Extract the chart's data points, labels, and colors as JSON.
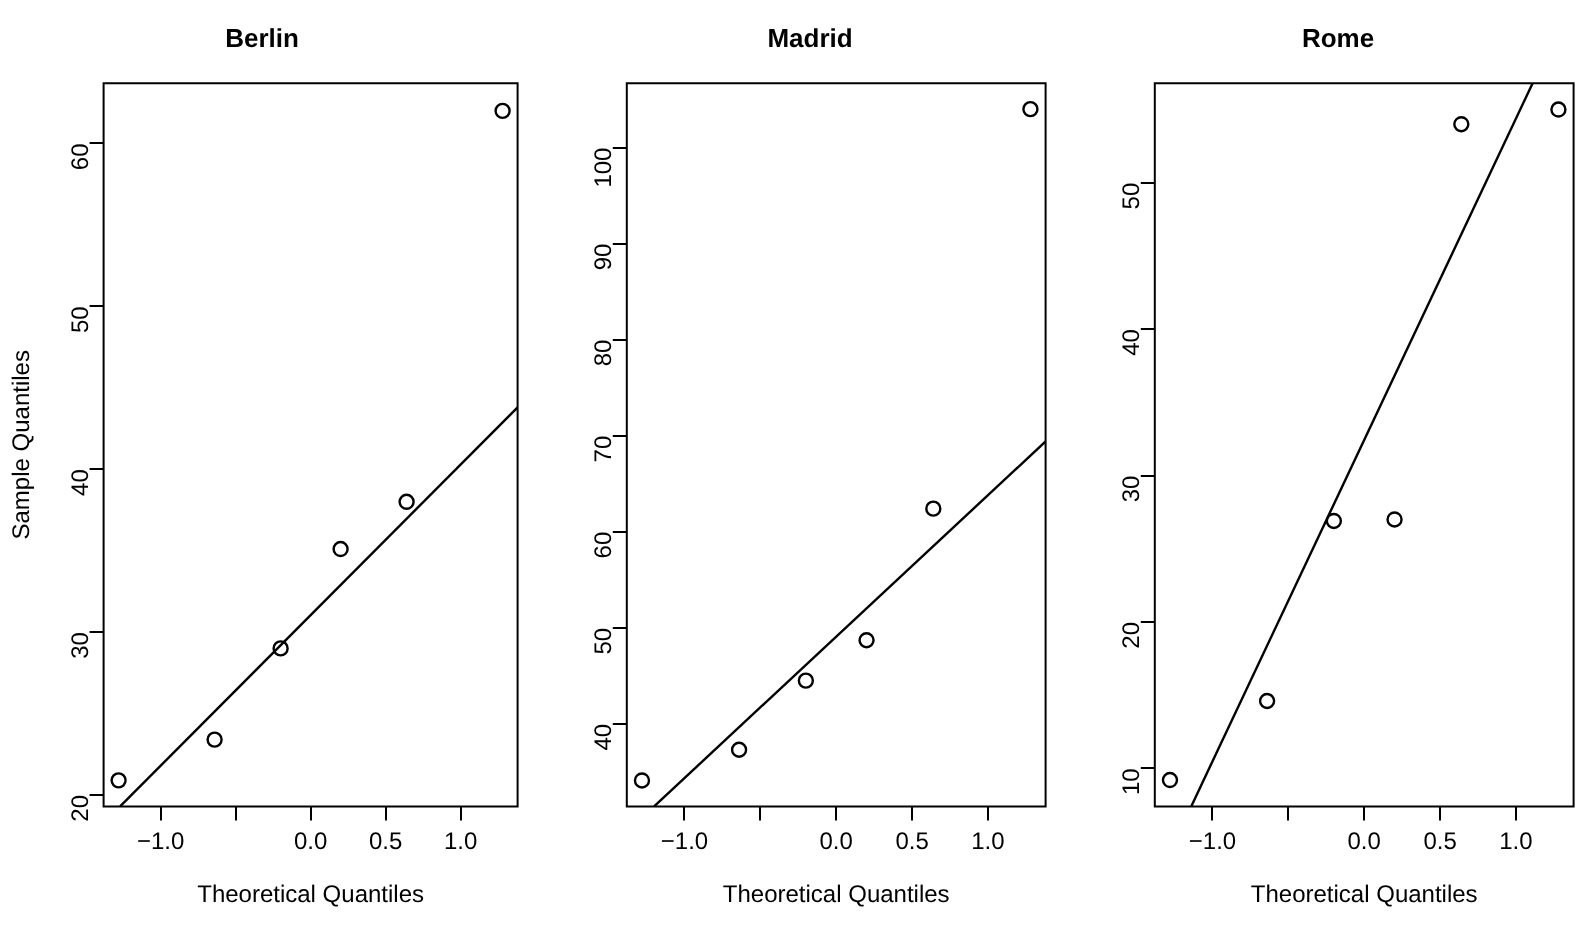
{
  "chart_data": [
    {
      "type": "scatter",
      "title": "Berlin",
      "xlabel": "Theoretical Quantiles",
      "ylabel": "Sample Quantiles",
      "xlim": [
        -1.38,
        1.38
      ],
      "xticks": [
        {
          "value": -1,
          "label": "−1.0"
        },
        {
          "value": -0.5,
          "label": null
        },
        {
          "value": 0,
          "label": "0.0"
        },
        {
          "value": 0.5,
          "label": "0.5"
        },
        {
          "value": 1,
          "label": "1.0"
        }
      ],
      "ylim": [
        19.3,
        63.7
      ],
      "yticks": [
        20,
        30,
        40,
        50,
        60
      ],
      "series": [
        {
          "color": "#000000",
          "marker": "circle",
          "x": [
            -1.28,
            -0.64,
            -0.2,
            0.2,
            0.64,
            1.28
          ],
          "values": [
            20.9,
            23.4,
            29.0,
            35.1,
            38.0,
            62.0
          ]
        },
        {
          "type": "line",
          "marker": "none",
          "color": "#000000",
          "x": [
            -1.27,
            1.38
          ],
          "values": [
            19.3,
            43.8
          ]
        }
      ]
    },
    {
      "type": "scatter",
      "title": "Madrid",
      "xlabel": "Theoretical Quantiles",
      "xlim": [
        -1.38,
        1.38
      ],
      "xticks": [
        {
          "value": -1,
          "label": "−1.0"
        },
        {
          "value": -0.5,
          "label": null
        },
        {
          "value": 0,
          "label": "0.0"
        },
        {
          "value": 0.5,
          "label": "0.5"
        },
        {
          "value": 1,
          "label": "1.0"
        }
      ],
      "ylim": [
        31.4,
        106.7
      ],
      "yticks": [
        40,
        50,
        60,
        70,
        80,
        90,
        100
      ],
      "series": [
        {
          "color": "#000000",
          "marker": "circle",
          "x": [
            -1.28,
            -0.64,
            -0.2,
            0.2,
            0.64,
            1.28
          ],
          "values": [
            34.1,
            37.3,
            44.5,
            48.7,
            62.4,
            104.0
          ]
        },
        {
          "type": "line",
          "marker": "none",
          "color": "#000000",
          "x": [
            -1.2,
            1.38
          ],
          "values": [
            31.4,
            69.4
          ]
        }
      ]
    },
    {
      "type": "scatter",
      "title": "Rome",
      "xlabel": "Theoretical Quantiles",
      "xlim": [
        -1.38,
        1.38
      ],
      "xticks": [
        {
          "value": -1,
          "label": "−1.0"
        },
        {
          "value": -0.5,
          "label": null
        },
        {
          "value": 0,
          "label": "0.0"
        },
        {
          "value": 0.5,
          "label": "0.5"
        },
        {
          "value": 1,
          "label": "1.0"
        }
      ],
      "ylim": [
        7.4,
        56.8
      ],
      "yticks": [
        10,
        20,
        30,
        40,
        50
      ],
      "series": [
        {
          "color": "#000000",
          "marker": "circle",
          "x": [
            -1.28,
            -0.64,
            -0.2,
            0.2,
            0.64,
            1.28
          ],
          "values": [
            9.2,
            14.6,
            26.9,
            27.0,
            54.0,
            55.0
          ]
        },
        {
          "type": "line",
          "marker": "none",
          "color": "#000000",
          "x": [
            -1.14,
            1.11
          ],
          "values": [
            7.4,
            56.8
          ]
        }
      ]
    }
  ]
}
